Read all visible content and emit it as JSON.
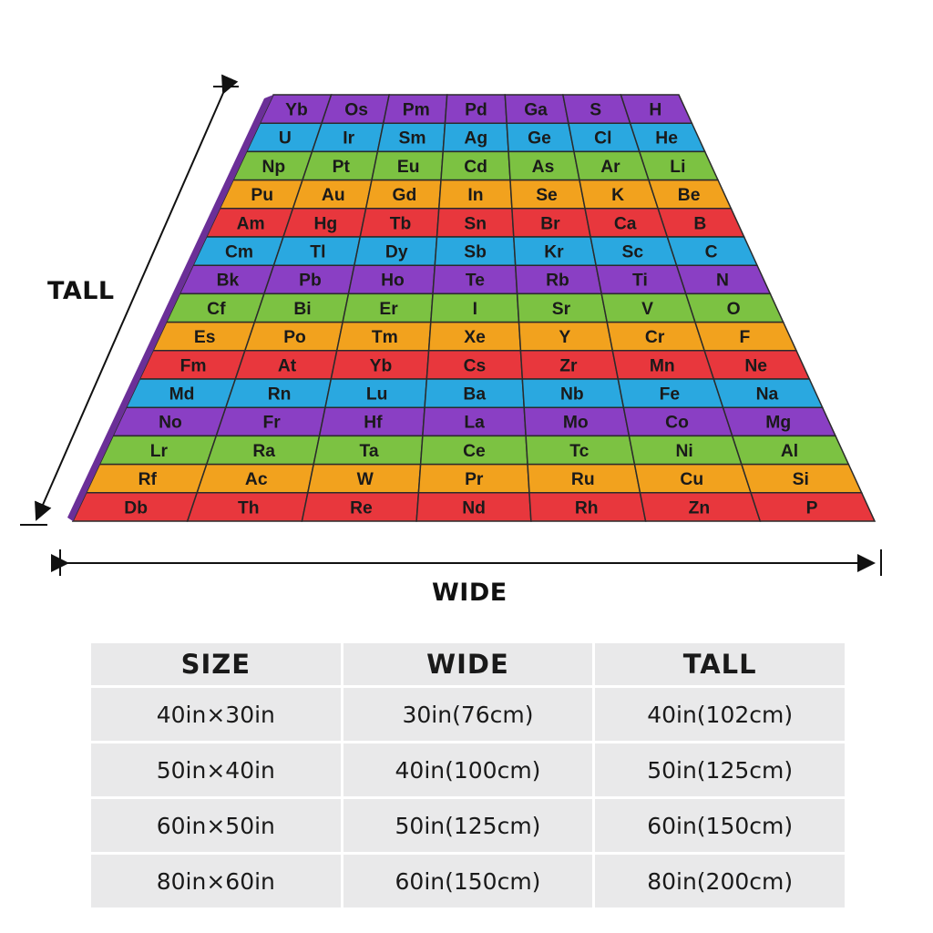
{
  "dimension_labels": {
    "tall": "TALL",
    "wide": "WIDE"
  },
  "blanket": {
    "description_grid_symbols": [
      [
        "Yb",
        "Os",
        "Pm",
        "Pd",
        "Ga",
        "S",
        "H"
      ],
      [
        "U",
        "Ir",
        "Sm",
        "Ag",
        "Ge",
        "Cl",
        "He"
      ],
      [
        "Np",
        "Pt",
        "Eu",
        "Cd",
        "As",
        "Ar",
        "Li"
      ],
      [
        "Pu",
        "Au",
        "Gd",
        "In",
        "Se",
        "K",
        "Be"
      ],
      [
        "Am",
        "Hg",
        "Tb",
        "Sn",
        "Br",
        "Ca",
        "B"
      ],
      [
        "Cm",
        "Tl",
        "Dy",
        "Sb",
        "Kr",
        "Sc",
        "C"
      ],
      [
        "Bk",
        "Pb",
        "Ho",
        "Te",
        "Rb",
        "Ti",
        "N"
      ],
      [
        "Cf",
        "Bi",
        "Er",
        "I",
        "Sr",
        "V",
        "O"
      ],
      [
        "Es",
        "Po",
        "Tm",
        "Xe",
        "Y",
        "Cr",
        "F"
      ],
      [
        "Fm",
        "At",
        "Yb",
        "Cs",
        "Zr",
        "Mn",
        "Ne"
      ],
      [
        "Md",
        "Rn",
        "Lu",
        "Ba",
        "Nb",
        "Fe",
        "Na"
      ],
      [
        "No",
        "Fr",
        "Hf",
        "La",
        "Mo",
        "Co",
        "Mg"
      ],
      [
        "Lr",
        "Ra",
        "Ta",
        "Ce",
        "Tc",
        "Ni",
        "Al"
      ],
      [
        "Rf",
        "Ac",
        "W",
        "Pr",
        "Ru",
        "Cu",
        "Si"
      ],
      [
        "Db",
        "Th",
        "Re",
        "Nd",
        "Rh",
        "Zn",
        "P"
      ]
    ],
    "row_colors": [
      "#8a3fc4",
      "#2aa8e0",
      "#7cc242",
      "#f2a21e",
      "#e8373d",
      "#2aa8e0",
      "#8a3fc4",
      "#7cc242",
      "#f2a21e",
      "#e8373d",
      "#2aa8e0",
      "#8a3fc4",
      "#7cc242",
      "#f2a21e",
      "#e8373d"
    ]
  },
  "size_table": {
    "headers": {
      "size": "SIZE",
      "wide": "WIDE",
      "tall": "TALL"
    },
    "rows": [
      {
        "size": "40in×30in",
        "wide": "30in(76cm)",
        "tall": "40in(102cm)"
      },
      {
        "size": "50in×40in",
        "wide": "40in(100cm)",
        "tall": "50in(125cm)"
      },
      {
        "size": "60in×50in",
        "wide": "50in(125cm)",
        "tall": "60in(150cm)"
      },
      {
        "size": "80in×60in",
        "wide": "60in(150cm)",
        "tall": "80in(200cm)"
      }
    ]
  }
}
